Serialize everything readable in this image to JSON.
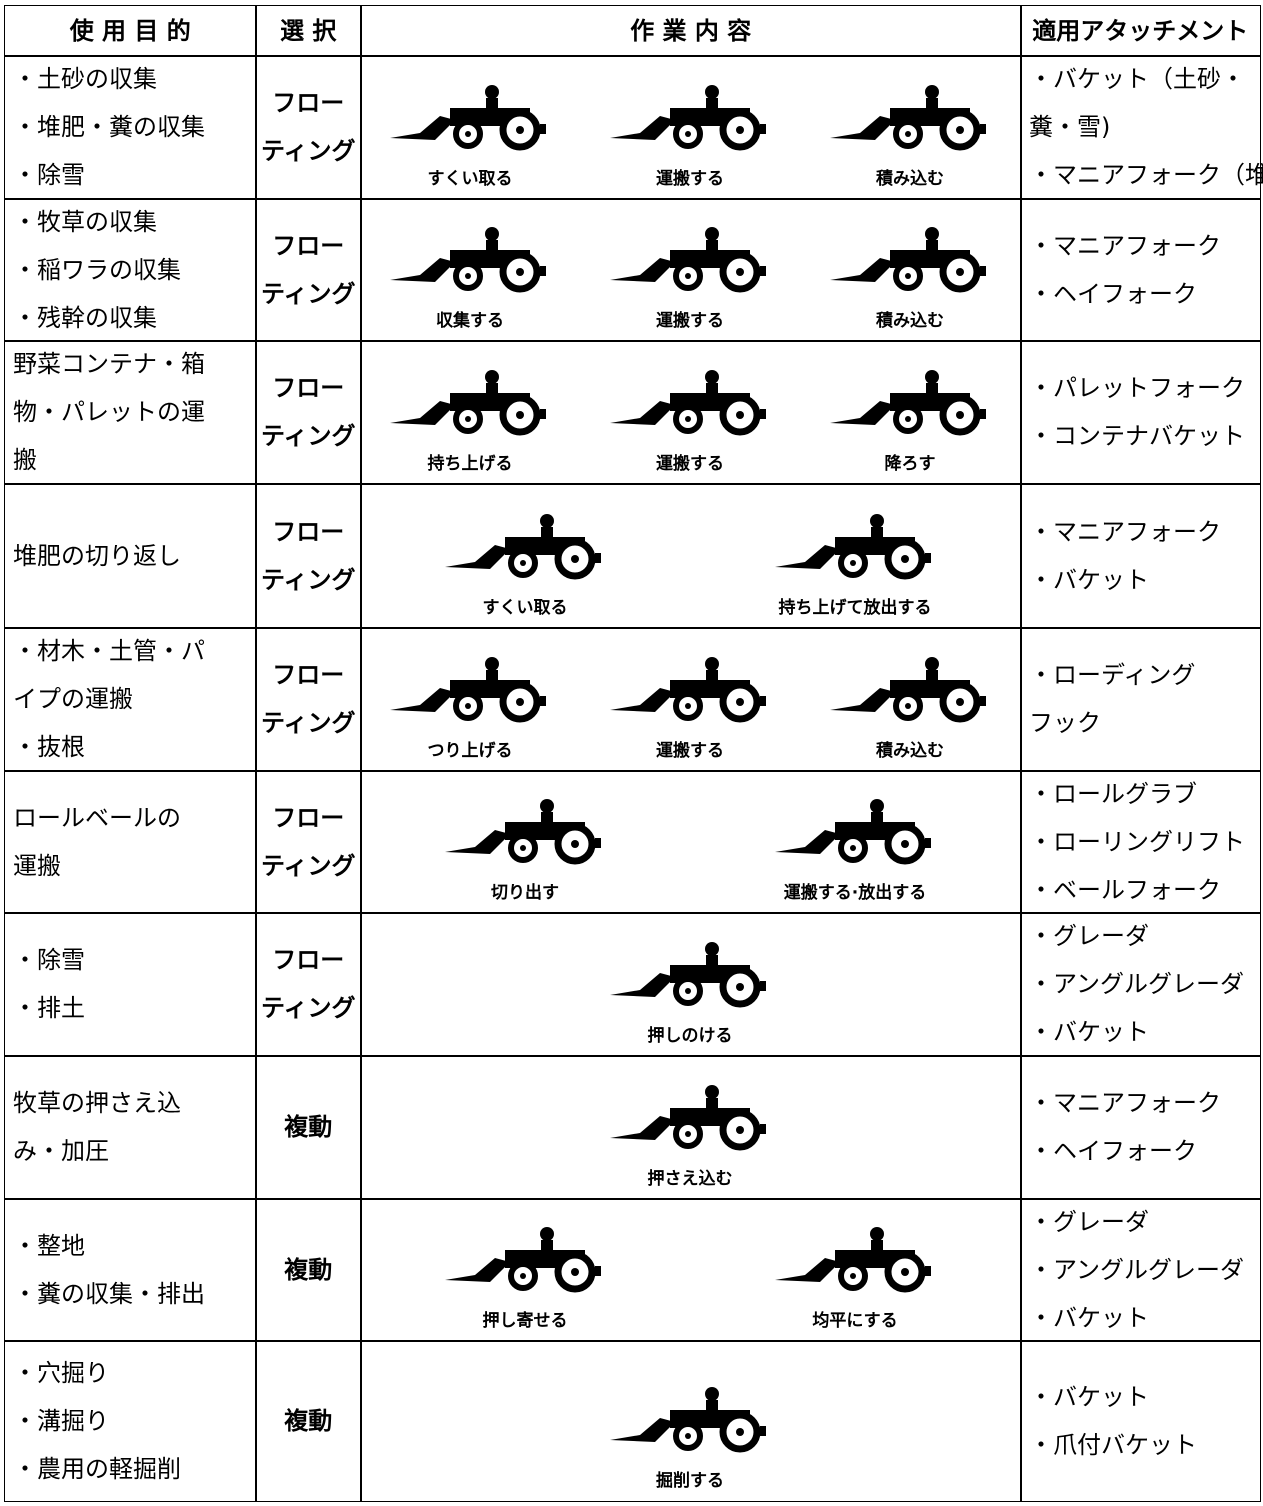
{
  "header": [
    "使 用 目 的",
    "選 択",
    "作 業 内 容",
    "適用アタッチメント"
  ],
  "rows": [
    {
      "purpose": [
        "・土砂の収集",
        "・堆肥・糞の収集",
        "・除雪"
      ],
      "select": [
        "フロー",
        "ティング"
      ],
      "captions": [
        "すくい取る",
        "運搬する",
        "積み込む"
      ],
      "attachments": [
        "・バケット（土砂・",
        "糞・雪)",
        "・マニアフォーク（堆肥)"
      ]
    },
    {
      "purpose": [
        "・牧草の収集",
        "・稲ワラの収集",
        "・残幹の収集"
      ],
      "select": [
        "フロー",
        "ティング"
      ],
      "captions": [
        "収集する",
        "運搬する",
        "積み込む"
      ],
      "attachments": [
        "・マニアフォーク",
        "・ヘイフォーク"
      ]
    },
    {
      "purpose": [
        "野菜コンテナ・箱",
        "物・パレットの運",
        "搬"
      ],
      "select": [
        "フロー",
        "ティング"
      ],
      "captions": [
        "持ち上げる",
        "運搬する",
        "降ろす"
      ],
      "attachments": [
        "・パレットフォーク",
        "・コンテナバケット"
      ]
    },
    {
      "purpose": [
        "堆肥の切り返し"
      ],
      "select": [
        "フロー",
        "ティング"
      ],
      "captions": [
        "すくい取る",
        "持ち上げて放出する"
      ],
      "attachments": [
        "・マニアフォーク",
        "・バケット"
      ]
    },
    {
      "purpose": [
        "・材木・土管・パ",
        "イプの運搬",
        "・抜根"
      ],
      "select": [
        "フロー",
        "ティング"
      ],
      "captions": [
        "つり上げる",
        "運搬する",
        "積み込む"
      ],
      "attachments": [
        "・ローディング",
        "フック"
      ]
    },
    {
      "purpose": [
        "ロールベールの",
        "運搬"
      ],
      "select": [
        "フロー",
        "ティング"
      ],
      "captions": [
        "切り出す",
        "運搬する·放出する"
      ],
      "attachments": [
        "・ロールグラブ",
        "・ローリングリフト",
        "・ベールフォーク"
      ]
    },
    {
      "purpose": [
        "・除雪",
        "・排土"
      ],
      "select": [
        "フロー",
        "ティング"
      ],
      "captions": [
        "押しのける"
      ],
      "attachments": [
        "・グレーダ",
        "・アングルグレーダ",
        "・バケット"
      ]
    },
    {
      "purpose": [
        "牧草の押さえ込",
        "み・加圧"
      ],
      "select": [
        "複動"
      ],
      "captions": [
        "押さえ込む"
      ],
      "attachments": [
        "・マニアフォーク",
        "・ヘイフォーク"
      ]
    },
    {
      "purpose": [
        "・整地",
        "・糞の収集・排出"
      ],
      "select": [
        "複動"
      ],
      "captions": [
        "押し寄せる",
        "均平にする"
      ],
      "attachments": [
        "・グレーダ",
        "・アングルグレーダ",
        "・バケット"
      ]
    },
    {
      "purpose": [
        "・穴掘り",
        "・溝掘り",
        "・農用の軽掘削"
      ],
      "select": [
        "複動"
      ],
      "captions": [
        "掘削する"
      ],
      "attachments": [
        "・バケット",
        "・爪付バケット"
      ]
    }
  ]
}
